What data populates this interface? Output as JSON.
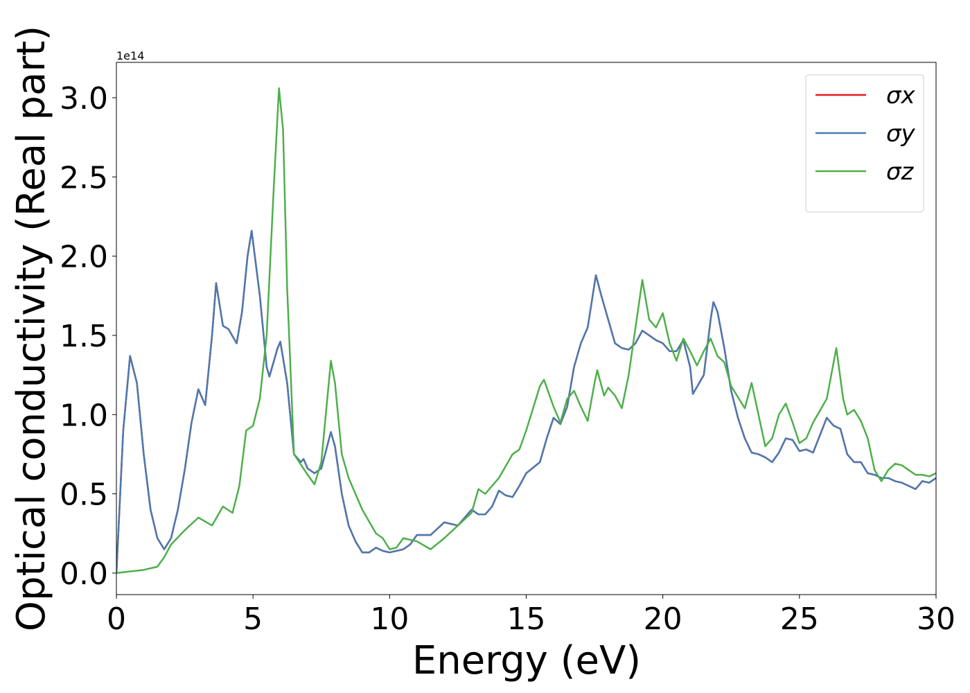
{
  "chart_data": {
    "type": "line",
    "xlabel": "Energy (eV)",
    "ylabel": "Optical conductivity (Real part)",
    "y_offset_text": "1e14",
    "xlim": [
      0,
      30
    ],
    "ylim": [
      -0.136,
      3.223
    ],
    "xticks": [
      0,
      5,
      10,
      15,
      20,
      25,
      30
    ],
    "yticks": [
      {
        "value": 0,
        "label": "0.0"
      },
      {
        "value": 0.5,
        "label": "0.5"
      },
      {
        "value": 1,
        "label": "1.0"
      },
      {
        "value": 1.5,
        "label": "1.5"
      },
      {
        "value": 2,
        "label": "2.0"
      },
      {
        "value": 2.5,
        "label": "2.5"
      },
      {
        "value": 3,
        "label": "3.0"
      }
    ],
    "legend": "upper right",
    "series": [
      {
        "name": "σx",
        "color": "#e41a1c",
        "x": [
          0,
          0.25,
          0.5,
          0.75,
          1,
          1.25,
          1.5,
          1.75,
          2,
          2.25,
          2.5,
          2.75,
          3,
          3.25,
          3.5,
          3.65,
          3.9,
          4.1,
          4.4,
          4.6,
          4.8,
          4.95,
          5.25,
          5.5,
          5.6,
          5.9,
          6,
          6.25,
          6.5,
          6.75,
          6.85,
          7,
          7.25,
          7.5,
          7.85,
          8,
          8.25,
          8.5,
          8.75,
          9,
          9.25,
          9.5,
          9.75,
          10,
          10.5,
          10.75,
          11,
          11.5,
          11.75,
          12,
          12.5,
          13,
          13.25,
          13.5,
          13.75,
          14,
          14.25,
          14.5,
          14.75,
          15,
          15.5,
          15.75,
          16,
          16.25,
          16.5,
          16.75,
          17,
          17.25,
          17.55,
          17.75,
          18,
          18.25,
          18.5,
          18.75,
          19,
          19.25,
          19.5,
          19.75,
          20,
          20.25,
          20.5,
          20.75,
          21,
          21.1,
          21.5,
          21.75,
          21.85,
          22,
          22.25,
          22.5,
          22.75,
          23,
          23.25,
          23.5,
          23.75,
          24,
          24.25,
          24.5,
          24.75,
          25,
          25.25,
          25.5,
          25.75,
          26,
          26.25,
          26.5,
          26.75,
          27,
          27.25,
          27.5,
          27.75,
          28,
          28.25,
          28.5,
          28.75,
          29,
          29.25,
          29.5,
          29.75,
          30
        ],
        "values": [
          0,
          0.9,
          1.37,
          1.2,
          0.75,
          0.4,
          0.22,
          0.15,
          0.22,
          0.4,
          0.65,
          0.95,
          1.16,
          1.06,
          1.5,
          1.83,
          1.56,
          1.54,
          1.45,
          1.65,
          2.0,
          2.16,
          1.75,
          1.3,
          1.24,
          1.42,
          1.46,
          1.2,
          0.75,
          0.7,
          0.72,
          0.66,
          0.63,
          0.66,
          0.89,
          0.8,
          0.5,
          0.3,
          0.2,
          0.13,
          0.13,
          0.16,
          0.14,
          0.13,
          0.15,
          0.18,
          0.24,
          0.24,
          0.28,
          0.32,
          0.3,
          0.4,
          0.37,
          0.37,
          0.42,
          0.52,
          0.49,
          0.48,
          0.55,
          0.63,
          0.7,
          0.85,
          0.98,
          0.94,
          1.05,
          1.3,
          1.45,
          1.55,
          1.88,
          1.75,
          1.6,
          1.45,
          1.42,
          1.41,
          1.45,
          1.53,
          1.5,
          1.47,
          1.45,
          1.4,
          1.4,
          1.47,
          1.3,
          1.13,
          1.25,
          1.6,
          1.71,
          1.65,
          1.42,
          1.15,
          0.98,
          0.85,
          0.76,
          0.75,
          0.73,
          0.7,
          0.76,
          0.85,
          0.84,
          0.77,
          0.78,
          0.76,
          0.87,
          0.98,
          0.93,
          0.91,
          0.75,
          0.7,
          0.7,
          0.63,
          0.62,
          0.6,
          0.6,
          0.58,
          0.57,
          0.55,
          0.53,
          0.58,
          0.57,
          0.6
        ]
      },
      {
        "name": "σy",
        "color": "#4a7ab0",
        "x": [
          0,
          0.25,
          0.5,
          0.75,
          1,
          1.25,
          1.5,
          1.75,
          2,
          2.25,
          2.5,
          2.75,
          3,
          3.25,
          3.5,
          3.65,
          3.9,
          4.1,
          4.4,
          4.6,
          4.8,
          4.95,
          5.25,
          5.5,
          5.6,
          5.9,
          6,
          6.25,
          6.5,
          6.75,
          6.85,
          7,
          7.25,
          7.5,
          7.85,
          8,
          8.25,
          8.5,
          8.75,
          9,
          9.25,
          9.5,
          9.75,
          10,
          10.5,
          10.75,
          11,
          11.5,
          11.75,
          12,
          12.5,
          13,
          13.25,
          13.5,
          13.75,
          14,
          14.25,
          14.5,
          14.75,
          15,
          15.5,
          15.75,
          16,
          16.25,
          16.5,
          16.75,
          17,
          17.25,
          17.55,
          17.75,
          18,
          18.25,
          18.5,
          18.75,
          19,
          19.25,
          19.5,
          19.75,
          20,
          20.25,
          20.5,
          20.75,
          21,
          21.1,
          21.5,
          21.75,
          21.85,
          22,
          22.25,
          22.5,
          22.75,
          23,
          23.25,
          23.5,
          23.75,
          24,
          24.25,
          24.5,
          24.75,
          25,
          25.25,
          25.5,
          25.75,
          26,
          26.25,
          26.5,
          26.75,
          27,
          27.25,
          27.5,
          27.75,
          28,
          28.25,
          28.5,
          28.75,
          29,
          29.25,
          29.5,
          29.75,
          30
        ],
        "values": [
          0,
          0.9,
          1.37,
          1.2,
          0.75,
          0.4,
          0.22,
          0.15,
          0.22,
          0.4,
          0.65,
          0.95,
          1.16,
          1.06,
          1.5,
          1.83,
          1.56,
          1.54,
          1.45,
          1.65,
          2.0,
          2.16,
          1.75,
          1.3,
          1.24,
          1.42,
          1.46,
          1.2,
          0.75,
          0.7,
          0.72,
          0.66,
          0.63,
          0.66,
          0.89,
          0.8,
          0.5,
          0.3,
          0.2,
          0.13,
          0.13,
          0.16,
          0.14,
          0.13,
          0.15,
          0.18,
          0.24,
          0.24,
          0.28,
          0.32,
          0.3,
          0.4,
          0.37,
          0.37,
          0.42,
          0.52,
          0.49,
          0.48,
          0.55,
          0.63,
          0.7,
          0.85,
          0.98,
          0.94,
          1.05,
          1.3,
          1.45,
          1.55,
          1.88,
          1.75,
          1.6,
          1.45,
          1.42,
          1.41,
          1.45,
          1.53,
          1.5,
          1.47,
          1.45,
          1.4,
          1.4,
          1.47,
          1.3,
          1.13,
          1.25,
          1.6,
          1.71,
          1.65,
          1.42,
          1.15,
          0.98,
          0.85,
          0.76,
          0.75,
          0.73,
          0.7,
          0.76,
          0.85,
          0.84,
          0.77,
          0.78,
          0.76,
          0.87,
          0.98,
          0.93,
          0.91,
          0.75,
          0.7,
          0.7,
          0.63,
          0.62,
          0.6,
          0.6,
          0.58,
          0.57,
          0.55,
          0.53,
          0.58,
          0.57,
          0.6
        ]
      },
      {
        "name": "σz",
        "color": "#4daf4a",
        "x": [
          0,
          0.5,
          1,
          1.5,
          1.75,
          2,
          2.5,
          3,
          3.5,
          3.9,
          4.25,
          4.5,
          4.75,
          5,
          5.25,
          5.5,
          5.75,
          5.95,
          6.1,
          6.25,
          6.5,
          7,
          7.25,
          7.5,
          7.85,
          8,
          8.25,
          8.5,
          9,
          9.5,
          9.75,
          10,
          10.25,
          10.5,
          11,
          11.5,
          12,
          12.5,
          13,
          13.25,
          13.5,
          14,
          14.5,
          14.75,
          15,
          15.5,
          15.65,
          16,
          16.25,
          16.5,
          16.75,
          17,
          17.25,
          17.5,
          17.6,
          17.85,
          18,
          18.25,
          18.5,
          18.75,
          19,
          19.25,
          19.5,
          19.75,
          20,
          20.25,
          20.5,
          20.75,
          21,
          21.25,
          21.5,
          21.75,
          22,
          22.25,
          22.5,
          23,
          23.25,
          23.5,
          23.75,
          24,
          24.25,
          24.5,
          24.75,
          25,
          25.25,
          25.5,
          26,
          26.35,
          26.6,
          26.75,
          27,
          27.25,
          27.5,
          27.75,
          28,
          28.25,
          28.5,
          28.75,
          29,
          29.25,
          29.5,
          29.75,
          30
        ],
        "values": [
          0,
          0.01,
          0.02,
          0.04,
          0.1,
          0.18,
          0.27,
          0.35,
          0.3,
          0.42,
          0.38,
          0.55,
          0.9,
          0.93,
          1.1,
          1.5,
          2.4,
          3.06,
          2.8,
          1.8,
          0.75,
          0.62,
          0.56,
          0.7,
          1.34,
          1.2,
          0.75,
          0.6,
          0.4,
          0.25,
          0.22,
          0.15,
          0.16,
          0.22,
          0.2,
          0.15,
          0.22,
          0.3,
          0.38,
          0.53,
          0.5,
          0.6,
          0.75,
          0.78,
          0.9,
          1.18,
          1.22,
          1.05,
          0.95,
          1.1,
          1.15,
          1.05,
          0.96,
          1.2,
          1.28,
          1.12,
          1.17,
          1.12,
          1.04,
          1.25,
          1.55,
          1.85,
          1.6,
          1.55,
          1.64,
          1.45,
          1.34,
          1.48,
          1.4,
          1.31,
          1.4,
          1.48,
          1.37,
          1.33,
          1.18,
          1.04,
          1.2,
          1.0,
          0.8,
          0.85,
          1.0,
          1.07,
          0.95,
          0.82,
          0.85,
          0.95,
          1.1,
          1.42,
          1.1,
          1.0,
          1.03,
          0.96,
          0.85,
          0.65,
          0.58,
          0.65,
          0.69,
          0.68,
          0.65,
          0.62,
          0.62,
          0.61,
          0.63
        ]
      }
    ]
  }
}
